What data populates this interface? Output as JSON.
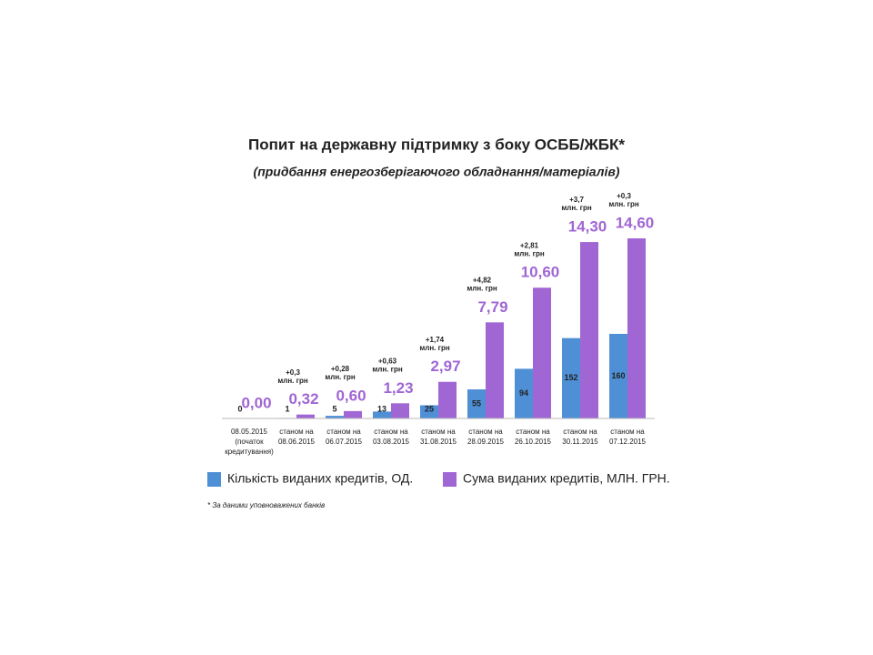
{
  "chart_data": {
    "type": "bar",
    "title": "Попит на державну підтримку з боку ОСББ/ЖБК*",
    "subtitle": "(придбання енергозберігаючого обладнання/матеріалів)",
    "categories": [
      [
        "08.05.2015",
        "(початок",
        "кредитування)"
      ],
      [
        "станом на",
        "08.06.2015"
      ],
      [
        "станом на",
        "06.07.2015"
      ],
      [
        "станом на",
        "03.08.2015"
      ],
      [
        "станом на",
        "31.08.2015"
      ],
      [
        "станом на",
        "28.09.2015"
      ],
      [
        "станом на",
        "26.10.2015"
      ],
      [
        "станом на",
        "30.11.2015"
      ],
      [
        "станом на",
        "07.12.2015"
      ]
    ],
    "series": [
      {
        "name": "Кількість виданих кредитів, ОД.",
        "color": "#4f8fd6",
        "values": [
          0,
          1,
          5,
          13,
          25,
          55,
          94,
          152,
          160
        ]
      },
      {
        "name": "Сума виданих кредитів, МЛН. ГРН.",
        "color": "#a066d3",
        "values": [
          0.0,
          0.32,
          0.6,
          1.23,
          2.97,
          7.79,
          10.6,
          14.3,
          14.6
        ],
        "value_labels": [
          "0,00",
          "0,32",
          "0,60",
          "1,23",
          "2,97",
          "7,79",
          "10,60",
          "14,30",
          "14,60"
        ]
      }
    ],
    "increments": [
      [
        "+0,3",
        "млн. грн"
      ],
      [
        "+0,28",
        "млн. грн"
      ],
      [
        "+0,63",
        "млн. грн"
      ],
      [
        "+1,74",
        "млн. грн"
      ],
      [
        "+4,82",
        "млн. грн"
      ],
      [
        "+2,81",
        "млн. грн"
      ],
      [
        "+3,7",
        "млн. грн"
      ],
      [
        "+0,3",
        "млн. грн"
      ]
    ],
    "footnote": "* За даними уповноважених банків"
  }
}
